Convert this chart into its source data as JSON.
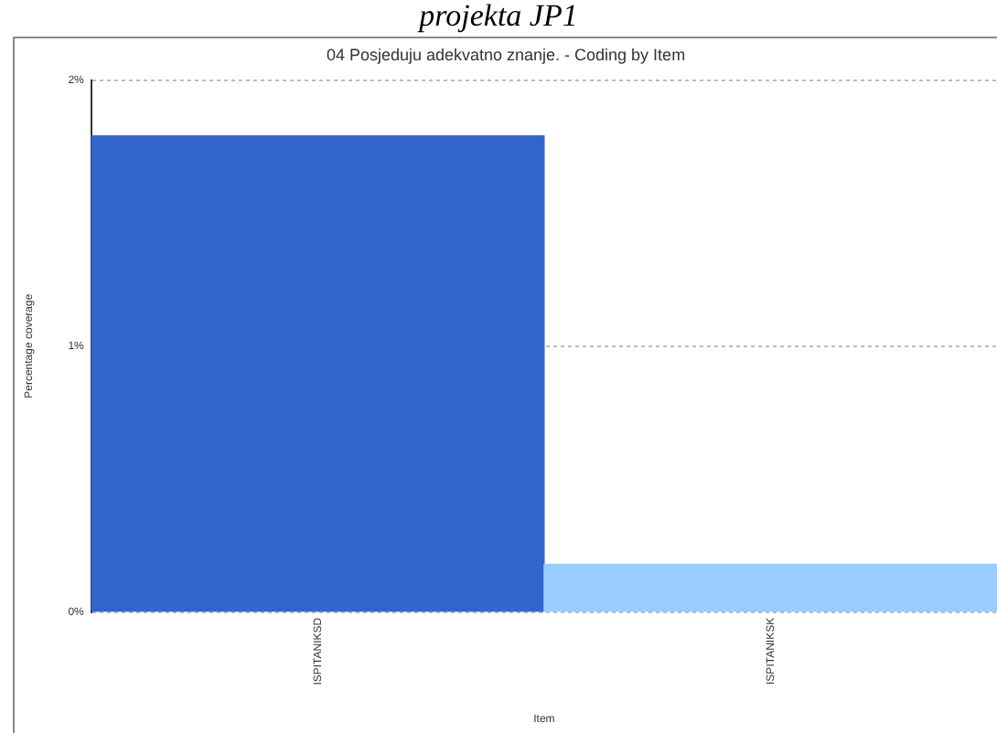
{
  "chart_data": {
    "type": "bar",
    "title": "04 Posjeduju adekvatno znanje. - Coding by Item",
    "annotations": [
      "projekta JP1"
    ],
    "xlabel": "Item",
    "ylabel": "Percentage coverage",
    "categories": [
      "ISPITANIKSD",
      "ISPITANIKSK"
    ],
    "values": [
      1.79,
      0.18
    ],
    "colors": [
      "#3366cc",
      "#99ccff"
    ],
    "ylim": [
      0,
      2
    ],
    "yticks": [
      {
        "value": 0,
        "label": "0%"
      },
      {
        "value": 1,
        "label": "1%"
      },
      {
        "value": 2,
        "label": "2%"
      }
    ],
    "grid": "y"
  }
}
